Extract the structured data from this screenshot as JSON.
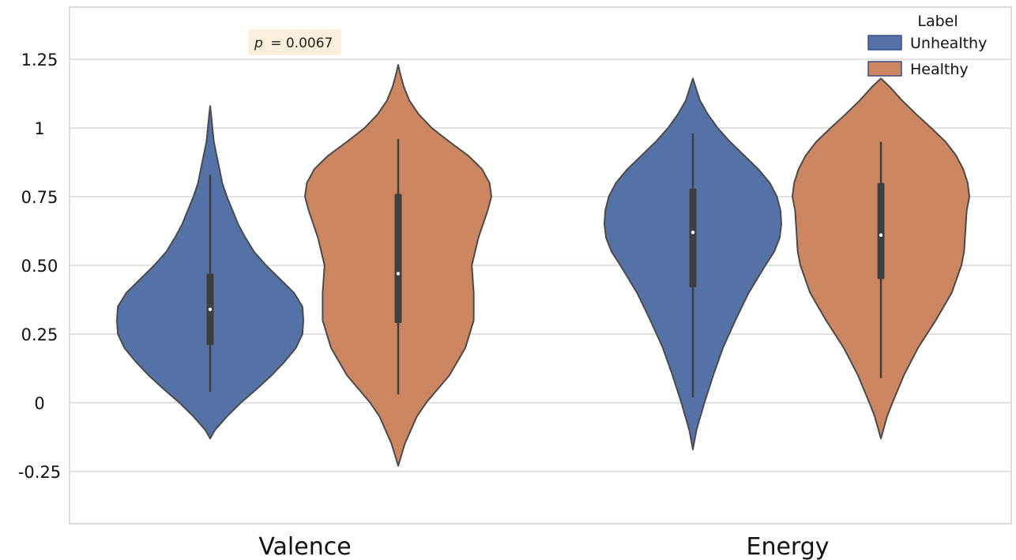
{
  "chart_data": {
    "type": "violin",
    "categories": [
      "Valence",
      "Energy"
    ],
    "legend": {
      "title": "Label",
      "entries": [
        {
          "name": "Unhealthy",
          "color": "#5572a8"
        },
        {
          "name": "Healthy",
          "color": "#cc8660"
        }
      ],
      "placement": "top-right"
    },
    "yticks": [
      {
        "value": -0.25,
        "label": "-0.25"
      },
      {
        "value": 0,
        "label": "0"
      },
      {
        "value": 0.25,
        "label": "0.25"
      },
      {
        "value": 0.5,
        "label": "0.50"
      },
      {
        "value": 0.75,
        "label": "0.75"
      },
      {
        "value": 1.0,
        "label": "1"
      },
      {
        "value": 1.25,
        "label": "1.25"
      }
    ],
    "ylim": [
      -0.44,
      1.44
    ],
    "grid": "horizontal",
    "annotation": {
      "label": "p",
      "text": "= 0.0067",
      "category": "Valence"
    },
    "series": [
      {
        "name": "Unhealthy",
        "color": "#5572a8",
        "violins": [
          {
            "category": "Valence",
            "median": 0.34,
            "q1": 0.21,
            "q3": 0.47,
            "whisker_low": 0.04,
            "whisker_high": 0.83,
            "profile": [
              [
                -0.13,
                0.0
              ],
              [
                -0.1,
                0.05
              ],
              [
                -0.05,
                0.18
              ],
              [
                0.0,
                0.33
              ],
              [
                0.05,
                0.5
              ],
              [
                0.1,
                0.66
              ],
              [
                0.15,
                0.8
              ],
              [
                0.2,
                0.92
              ],
              [
                0.25,
                0.99
              ],
              [
                0.3,
                1.0
              ],
              [
                0.35,
                0.99
              ],
              [
                0.4,
                0.9
              ],
              [
                0.45,
                0.75
              ],
              [
                0.5,
                0.6
              ],
              [
                0.55,
                0.47
              ],
              [
                0.6,
                0.38
              ],
              [
                0.65,
                0.3
              ],
              [
                0.7,
                0.24
              ],
              [
                0.75,
                0.18
              ],
              [
                0.8,
                0.13
              ],
              [
                0.85,
                0.1
              ],
              [
                0.9,
                0.07
              ],
              [
                0.95,
                0.04
              ],
              [
                1.0,
                0.025
              ],
              [
                1.05,
                0.01
              ],
              [
                1.08,
                0.0
              ]
            ]
          },
          {
            "category": "Energy",
            "median": 0.62,
            "q1": 0.42,
            "q3": 0.78,
            "whisker_low": 0.02,
            "whisker_high": 0.98,
            "profile": [
              [
                -0.17,
                0.0
              ],
              [
                -0.1,
                0.04
              ],
              [
                0.0,
                0.13
              ],
              [
                0.1,
                0.23
              ],
              [
                0.2,
                0.34
              ],
              [
                0.3,
                0.48
              ],
              [
                0.4,
                0.63
              ],
              [
                0.5,
                0.82
              ],
              [
                0.55,
                0.92
              ],
              [
                0.6,
                0.98
              ],
              [
                0.65,
                1.0
              ],
              [
                0.7,
                0.99
              ],
              [
                0.75,
                0.95
              ],
              [
                0.8,
                0.87
              ],
              [
                0.85,
                0.74
              ],
              [
                0.9,
                0.58
              ],
              [
                0.95,
                0.42
              ],
              [
                1.0,
                0.28
              ],
              [
                1.05,
                0.17
              ],
              [
                1.1,
                0.08
              ],
              [
                1.15,
                0.03
              ],
              [
                1.18,
                0.0
              ]
            ]
          }
        ]
      },
      {
        "name": "Healthy",
        "color": "#cc8660",
        "violins": [
          {
            "category": "Valence",
            "median": 0.47,
            "q1": 0.29,
            "q3": 0.76,
            "whisker_low": 0.03,
            "whisker_high": 0.96,
            "profile": [
              [
                -0.23,
                0.0
              ],
              [
                -0.15,
                0.07
              ],
              [
                -0.05,
                0.2
              ],
              [
                0.0,
                0.3
              ],
              [
                0.1,
                0.55
              ],
              [
                0.2,
                0.72
              ],
              [
                0.3,
                0.81
              ],
              [
                0.4,
                0.81
              ],
              [
                0.5,
                0.79
              ],
              [
                0.6,
                0.86
              ],
              [
                0.7,
                0.96
              ],
              [
                0.75,
                1.0
              ],
              [
                0.8,
                0.98
              ],
              [
                0.85,
                0.9
              ],
              [
                0.9,
                0.75
              ],
              [
                0.95,
                0.55
              ],
              [
                1.0,
                0.36
              ],
              [
                1.05,
                0.22
              ],
              [
                1.1,
                0.12
              ],
              [
                1.15,
                0.06
              ],
              [
                1.2,
                0.02
              ],
              [
                1.23,
                0.0
              ]
            ]
          },
          {
            "category": "Energy",
            "median": 0.61,
            "q1": 0.45,
            "q3": 0.8,
            "whisker_low": 0.09,
            "whisker_high": 0.95,
            "profile": [
              [
                -0.13,
                0.0
              ],
              [
                -0.05,
                0.07
              ],
              [
                0.0,
                0.13
              ],
              [
                0.1,
                0.26
              ],
              [
                0.2,
                0.42
              ],
              [
                0.3,
                0.62
              ],
              [
                0.4,
                0.8
              ],
              [
                0.5,
                0.91
              ],
              [
                0.55,
                0.94
              ],
              [
                0.6,
                0.95
              ],
              [
                0.65,
                0.96
              ],
              [
                0.7,
                0.97
              ],
              [
                0.75,
                1.0
              ],
              [
                0.8,
                0.98
              ],
              [
                0.85,
                0.93
              ],
              [
                0.9,
                0.85
              ],
              [
                0.95,
                0.73
              ],
              [
                1.0,
                0.57
              ],
              [
                1.05,
                0.4
              ],
              [
                1.1,
                0.24
              ],
              [
                1.15,
                0.1
              ],
              [
                1.18,
                0.0
              ]
            ]
          }
        ]
      }
    ]
  }
}
